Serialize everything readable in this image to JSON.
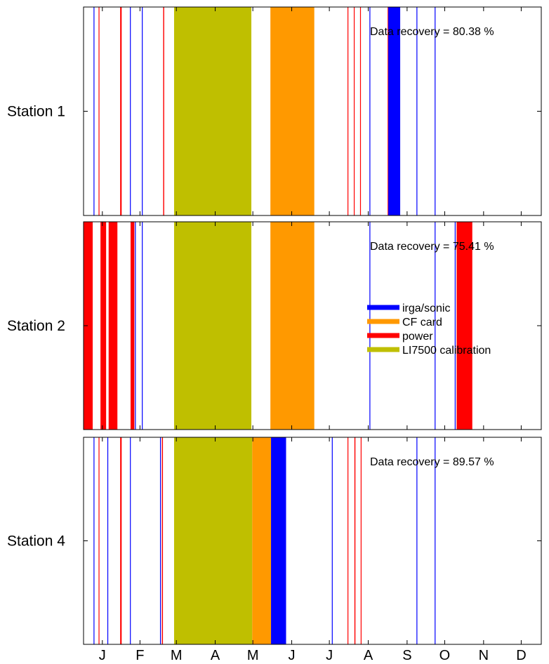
{
  "chart_data": {
    "type": "timeline",
    "x_domain_days": [
      0,
      365
    ],
    "month_ticks": [
      {
        "label": "J",
        "day": 15
      },
      {
        "label": "F",
        "day": 45
      },
      {
        "label": "M",
        "day": 74
      },
      {
        "label": "A",
        "day": 105
      },
      {
        "label": "M",
        "day": 135
      },
      {
        "label": "J",
        "day": 166
      },
      {
        "label": "J",
        "day": 196
      },
      {
        "label": "A",
        "day": 227
      },
      {
        "label": "S",
        "day": 258
      },
      {
        "label": "O",
        "day": 288
      },
      {
        "label": "N",
        "day": 319
      },
      {
        "label": "D",
        "day": 349
      }
    ],
    "categories": [
      {
        "key": "irga",
        "label": "irga/sonic",
        "color": "#0000ff"
      },
      {
        "key": "cf",
        "label": "CF card",
        "color": "#ff9900"
      },
      {
        "key": "power",
        "label": "power",
        "color": "#ff0000"
      },
      {
        "key": "cal",
        "label": "LI7500 calibration",
        "color": "#bfbf00"
      }
    ],
    "legend_position": "right, inside Station 2 panel",
    "panels": [
      {
        "label": "Station 1",
        "recovery_text": "Data recovery = 80.38 %",
        "gaps": [
          {
            "cat": "irga",
            "start": 8.0,
            "end": 8.5
          },
          {
            "cat": "power",
            "start": 12.0,
            "end": 12.5
          },
          {
            "cat": "power",
            "start": 29.2,
            "end": 30.4
          },
          {
            "cat": "irga",
            "start": 37.0,
            "end": 37.5
          },
          {
            "cat": "irga",
            "start": 46.5,
            "end": 47.0
          },
          {
            "cat": "power",
            "start": 63.5,
            "end": 64.3
          },
          {
            "cat": "cal",
            "start": 72.2,
            "end": 133.8
          },
          {
            "cat": "cf",
            "start": 149.0,
            "end": 184.0
          },
          {
            "cat": "power",
            "start": 210.5,
            "end": 211.0
          },
          {
            "cat": "power",
            "start": 215.5,
            "end": 216.0
          },
          {
            "cat": "power",
            "start": 220.5,
            "end": 221.0
          },
          {
            "cat": "irga",
            "start": 228.0,
            "end": 228.5
          },
          {
            "cat": "power",
            "start": 242.5,
            "end": 243.0
          },
          {
            "cat": "irga",
            "start": 243.0,
            "end": 252.5
          },
          {
            "cat": "irga",
            "start": 265.5,
            "end": 266.0
          },
          {
            "cat": "irga",
            "start": 280.0,
            "end": 280.5
          }
        ]
      },
      {
        "label": "Station 2",
        "recovery_text": "Data recovery = 75.41 %",
        "gaps": [
          {
            "cat": "power",
            "start": 0.0,
            "end": 7.3
          },
          {
            "cat": "power",
            "start": 13.5,
            "end": 18.0
          },
          {
            "cat": "power",
            "start": 20.0,
            "end": 27.0
          },
          {
            "cat": "power",
            "start": 37.5,
            "end": 40.5
          },
          {
            "cat": "irga",
            "start": 41.0,
            "end": 41.5
          },
          {
            "cat": "irga",
            "start": 46.5,
            "end": 47.0
          },
          {
            "cat": "cal",
            "start": 72.2,
            "end": 133.8
          },
          {
            "cat": "cf",
            "start": 149.0,
            "end": 184.0
          },
          {
            "cat": "irga",
            "start": 228.0,
            "end": 228.5
          },
          {
            "cat": "irga",
            "start": 280.0,
            "end": 280.5
          },
          {
            "cat": "irga",
            "start": 296.0,
            "end": 296.5
          },
          {
            "cat": "power",
            "start": 297.5,
            "end": 310.0
          }
        ]
      },
      {
        "label": "Station 4",
        "recovery_text": "Data recovery = 89.57 %",
        "gaps": [
          {
            "cat": "irga",
            "start": 8.0,
            "end": 8.5
          },
          {
            "cat": "power",
            "start": 12.0,
            "end": 12.5
          },
          {
            "cat": "irga",
            "start": 19.0,
            "end": 19.5
          },
          {
            "cat": "power",
            "start": 29.2,
            "end": 30.4
          },
          {
            "cat": "irga",
            "start": 37.0,
            "end": 37.5
          },
          {
            "cat": "irga",
            "start": 61.0,
            "end": 61.5
          },
          {
            "cat": "power",
            "start": 62.5,
            "end": 63.3
          },
          {
            "cat": "cal",
            "start": 72.2,
            "end": 134.5
          },
          {
            "cat": "cf",
            "start": 134.5,
            "end": 149.5
          },
          {
            "cat": "irga",
            "start": 149.5,
            "end": 161.5
          },
          {
            "cat": "irga",
            "start": 198.0,
            "end": 198.5
          },
          {
            "cat": "power",
            "start": 210.5,
            "end": 211.0
          },
          {
            "cat": "power",
            "start": 216.0,
            "end": 216.8
          },
          {
            "cat": "power",
            "start": 221.0,
            "end": 221.5
          },
          {
            "cat": "irga",
            "start": 265.5,
            "end": 266.0
          },
          {
            "cat": "irga",
            "start": 280.0,
            "end": 280.5
          }
        ]
      }
    ]
  }
}
